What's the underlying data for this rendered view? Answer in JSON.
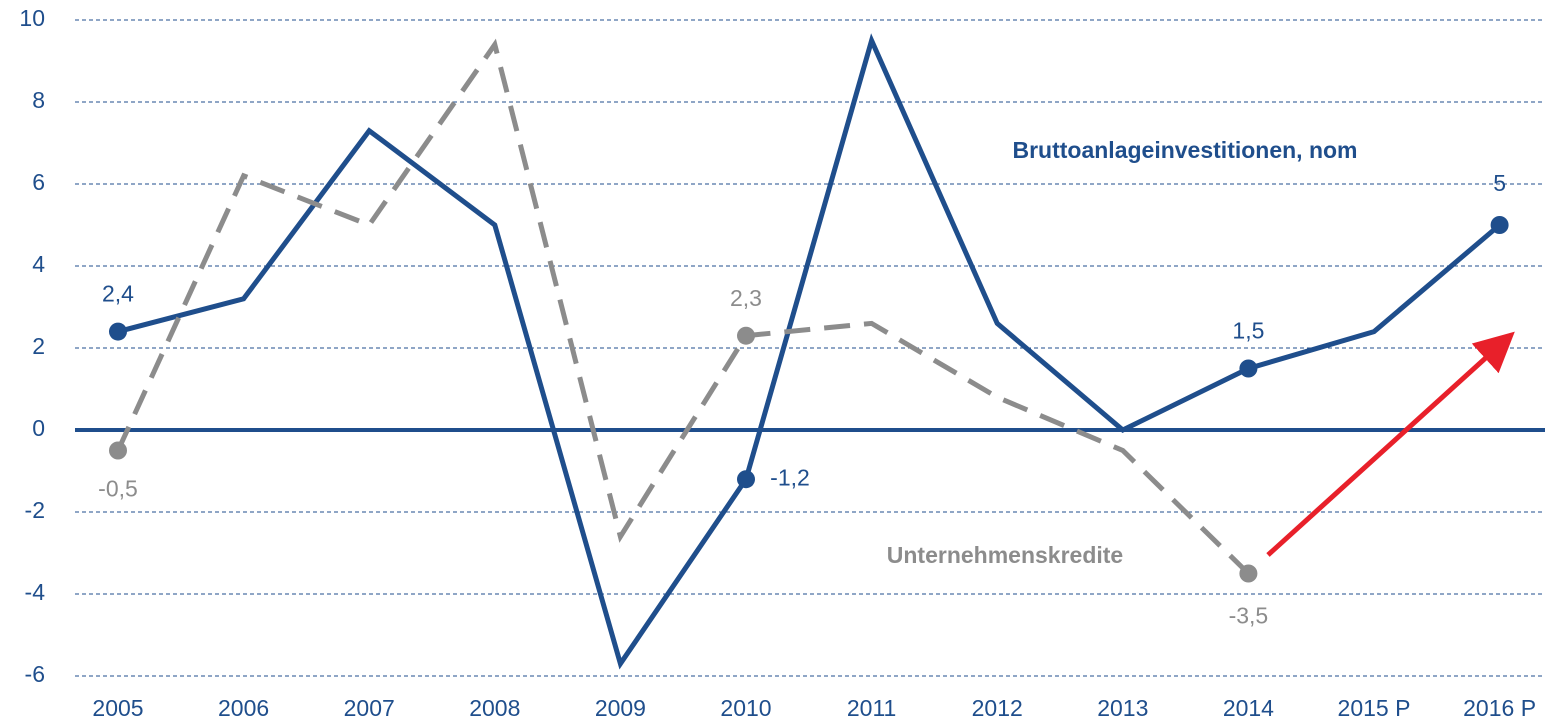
{
  "chart_data": {
    "type": "line",
    "categories": [
      "2005",
      "2006",
      "2007",
      "2008",
      "2009",
      "2010",
      "2011",
      "2012",
      "2013",
      "2014",
      "2015 P",
      "2016 P"
    ],
    "series": [
      {
        "name": "Bruttoanlageinvestitionen, nom",
        "color": "#1f4e8c",
        "dashed": false,
        "values": [
          2.4,
          3.2,
          7.3,
          5.0,
          -5.7,
          -1.2,
          9.5,
          2.6,
          0,
          1.5,
          2.4,
          5
        ],
        "value_labels": [
          "2,4",
          null,
          null,
          null,
          null,
          "-1,2",
          null,
          null,
          null,
          "1,5",
          null,
          "5"
        ]
      },
      {
        "name": "Unternehmenskredite",
        "color": "#8c8c8c",
        "dashed": true,
        "values": [
          -0.5,
          6.2,
          5.0,
          9.4,
          -2.6,
          2.3,
          2.6,
          0.8,
          -0.5,
          -3.5,
          null,
          null
        ],
        "value_labels": [
          "-0,5",
          null,
          null,
          null,
          null,
          "2,3",
          null,
          null,
          null,
          "-3,5",
          null,
          null
        ]
      }
    ],
    "ylim": [
      -6,
      10
    ],
    "yticks": [
      -6,
      -4,
      -2,
      0,
      2,
      4,
      6,
      8,
      10
    ],
    "grid": true
  }
}
